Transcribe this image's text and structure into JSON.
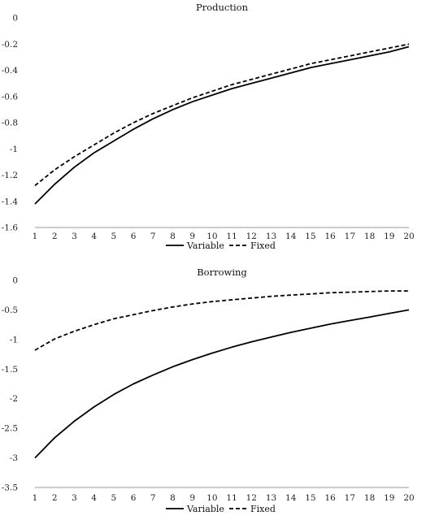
{
  "chart_data": [
    {
      "type": "line",
      "title": "Production",
      "xlabel": "",
      "ylabel": "",
      "x": [
        1,
        2,
        3,
        4,
        5,
        6,
        7,
        8,
        9,
        10,
        11,
        12,
        13,
        14,
        15,
        16,
        17,
        18,
        19,
        20
      ],
      "xticks": [
        "1",
        "2",
        "3",
        "4",
        "5",
        "6",
        "7",
        "8",
        "9",
        "10",
        "11",
        "12",
        "13",
        "14",
        "15",
        "16",
        "17",
        "18",
        "19",
        "20"
      ],
      "ylim": [
        -1.6,
        0
      ],
      "yticks": [
        0,
        -0.2,
        -0.4,
        -0.6,
        -0.8,
        -1,
        -1.2,
        -1.4,
        -1.6
      ],
      "ytick_labels": [
        "0",
        "-0.2",
        "-0.4",
        "-0.6",
        "-0.8",
        "-1",
        "-1.2",
        "-1.4",
        "-1.6"
      ],
      "grid": false,
      "legend": "bottom-center",
      "series": [
        {
          "name": "Variable",
          "style": "solid",
          "color": "#000000",
          "values": [
            -1.42,
            -1.27,
            -1.14,
            -1.03,
            -0.94,
            -0.85,
            -0.77,
            -0.7,
            -0.64,
            -0.59,
            -0.54,
            -0.5,
            -0.46,
            -0.42,
            -0.38,
            -0.35,
            -0.32,
            -0.29,
            -0.26,
            -0.22
          ]
        },
        {
          "name": "Fixed",
          "style": "dashed",
          "color": "#000000",
          "values": [
            -1.28,
            -1.16,
            -1.06,
            -0.97,
            -0.88,
            -0.8,
            -0.73,
            -0.67,
            -0.61,
            -0.56,
            -0.51,
            -0.47,
            -0.43,
            -0.39,
            -0.35,
            -0.32,
            -0.29,
            -0.26,
            -0.23,
            -0.2
          ]
        }
      ]
    },
    {
      "type": "line",
      "title": "Borrowing",
      "xlabel": "",
      "ylabel": "",
      "x": [
        1,
        2,
        3,
        4,
        5,
        6,
        7,
        8,
        9,
        10,
        11,
        12,
        13,
        14,
        15,
        16,
        17,
        18,
        19,
        20
      ],
      "xticks": [
        "1",
        "2",
        "3",
        "4",
        "5",
        "6",
        "7",
        "8",
        "9",
        "10",
        "11",
        "12",
        "13",
        "14",
        "15",
        "16",
        "17",
        "18",
        "19",
        "20"
      ],
      "ylim": [
        -3.5,
        0
      ],
      "yticks": [
        0,
        -0.5,
        -1,
        -1.5,
        -2,
        -2.5,
        -3,
        -3.5
      ],
      "ytick_labels": [
        "0",
        "-0.5",
        "-1",
        "-1.5",
        "-2",
        "-2.5",
        "-3",
        "-3.5"
      ],
      "grid": false,
      "legend": "bottom-center",
      "series": [
        {
          "name": "Variable",
          "style": "solid",
          "color": "#000000",
          "values": [
            -3.0,
            -2.66,
            -2.38,
            -2.14,
            -1.93,
            -1.75,
            -1.6,
            -1.46,
            -1.34,
            -1.23,
            -1.13,
            -1.04,
            -0.96,
            -0.88,
            -0.81,
            -0.74,
            -0.68,
            -0.62,
            -0.56,
            -0.5
          ]
        },
        {
          "name": "Fixed",
          "style": "dashed",
          "color": "#000000",
          "values": [
            -1.18,
            -0.99,
            -0.86,
            -0.75,
            -0.65,
            -0.58,
            -0.51,
            -0.45,
            -0.4,
            -0.36,
            -0.33,
            -0.3,
            -0.27,
            -0.25,
            -0.23,
            -0.21,
            -0.2,
            -0.19,
            -0.18,
            -0.18
          ]
        }
      ]
    }
  ]
}
